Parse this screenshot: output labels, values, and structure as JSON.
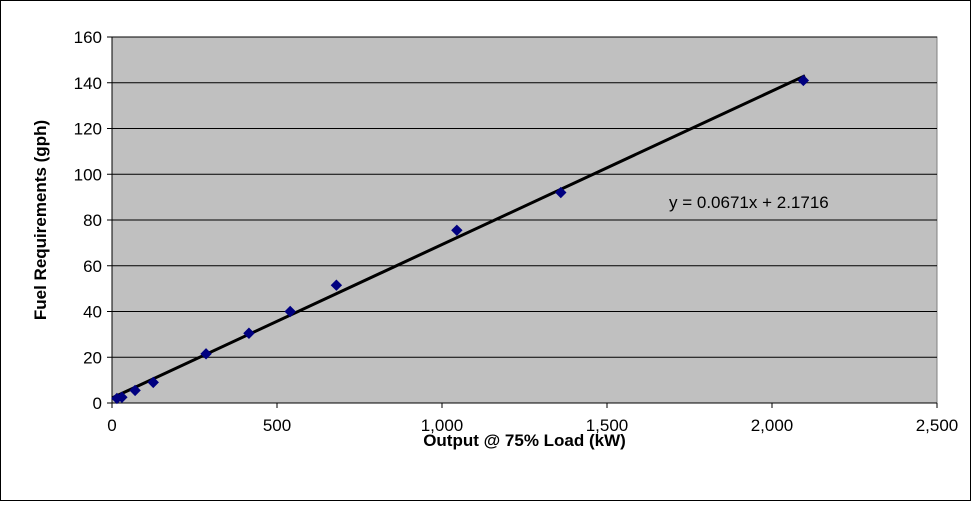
{
  "chart_data": {
    "type": "scatter",
    "title": "",
    "xlabel": "Output @ 75% Load (kW)",
    "ylabel": "Fuel Requirements (gph)",
    "xlim": [
      0,
      2500
    ],
    "ylim": [
      0,
      160
    ],
    "x_ticks": [
      0,
      500,
      1000,
      1500,
      2000,
      2500
    ],
    "x_tick_labels": [
      "0",
      "500",
      "1,000",
      "1,500",
      "2,000",
      "2,500"
    ],
    "y_ticks": [
      0,
      20,
      40,
      60,
      80,
      100,
      120,
      140,
      160
    ],
    "y_tick_labels": [
      "0",
      "20",
      "40",
      "60",
      "80",
      "100",
      "120",
      "140",
      "160"
    ],
    "grid": "horizontal",
    "legend": "none",
    "series": [
      {
        "x": [
          15,
          30,
          70,
          125,
          285,
          415,
          540,
          680,
          1045,
          1360,
          2095
        ],
        "y": [
          2,
          2.5,
          5.5,
          9,
          21.5,
          30.5,
          40,
          51.5,
          75.5,
          92,
          141
        ]
      }
    ],
    "trendline": {
      "slope": 0.0671,
      "intercept": 2.1716,
      "x_range": [
        0,
        2100
      ],
      "label": "y = 0.0671x + 2.1716"
    },
    "colors": {
      "plot_background": "#c0c0c0",
      "marker": "#000080",
      "trendline": "#000000",
      "gridline": "#000000"
    }
  }
}
